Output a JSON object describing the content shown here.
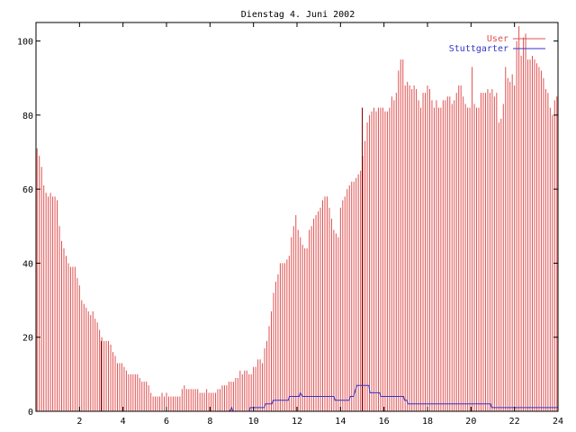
{
  "chart_data": {
    "type": "bar",
    "title": "Dienstag 4. Juni 2002",
    "xlabel": "",
    "ylabel": "",
    "xlim": [
      0,
      24
    ],
    "ylim": [
      0,
      105
    ],
    "x_ticks": [
      2,
      4,
      6,
      8,
      10,
      12,
      14,
      16,
      18,
      20,
      22,
      24
    ],
    "y_ticks": [
      0,
      20,
      40,
      60,
      80,
      100
    ],
    "grid": false,
    "legend_position": "top-right",
    "interval_hours": 0.0833,
    "series": [
      {
        "name": "User",
        "style": "impulses",
        "color": "#e05050",
        "values": [
          71,
          69,
          66,
          61,
          59,
          58,
          59,
          58,
          58,
          57,
          50,
          46,
          44,
          42,
          40,
          39,
          39,
          39,
          36,
          34,
          30,
          29,
          28,
          27,
          26,
          27,
          25,
          24,
          22,
          20,
          19,
          19,
          19,
          18,
          16,
          15,
          13,
          13,
          13,
          12,
          11,
          10,
          10,
          10,
          10,
          10,
          9,
          8,
          8,
          8,
          7,
          5,
          4,
          4,
          4,
          4,
          5,
          4,
          5,
          4,
          4,
          4,
          4,
          4,
          4,
          6,
          7,
          6,
          6,
          6,
          6,
          6,
          6,
          5,
          5,
          5,
          6,
          5,
          5,
          5,
          5,
          6,
          6,
          7,
          7,
          7,
          8,
          8,
          8,
          9,
          9,
          11,
          10,
          11,
          11,
          10,
          10,
          12,
          12,
          14,
          14,
          13,
          17,
          19,
          23,
          27,
          32,
          35,
          37,
          40,
          40,
          40,
          41,
          42,
          47,
          50,
          53,
          49,
          47,
          45,
          44,
          44,
          49,
          50,
          52,
          53,
          54,
          55,
          57,
          58,
          58,
          55,
          52,
          49,
          48,
          47,
          55,
          57,
          58,
          60,
          61,
          62,
          62,
          63,
          64,
          65,
          69,
          73,
          78,
          80,
          81,
          82,
          81,
          82,
          82,
          82,
          81,
          81,
          82,
          85,
          84,
          86,
          92,
          95,
          95,
          88,
          89,
          88,
          87,
          88,
          87,
          84,
          82,
          86,
          86,
          88,
          87,
          84,
          82,
          84,
          82,
          82,
          84,
          84,
          85,
          85,
          83,
          84,
          86,
          88,
          88,
          85,
          83,
          82,
          82,
          93,
          83,
          82,
          82,
          86,
          86,
          86,
          87,
          86,
          87,
          85,
          86,
          78,
          79,
          83,
          93,
          90,
          89,
          91,
          88,
          100,
          104,
          96,
          101,
          102,
          95,
          95,
          96,
          95,
          94,
          93,
          92,
          90,
          87,
          86,
          82,
          80,
          84,
          85
        ]
      },
      {
        "name": "Stuttgarter",
        "style": "steps",
        "color": "#3333cc",
        "points": [
          [
            0,
            0
          ],
          [
            8.9,
            0
          ],
          [
            9.0,
            1
          ],
          [
            9.05,
            0
          ],
          [
            9.8,
            0
          ],
          [
            9.85,
            1
          ],
          [
            10.5,
            1
          ],
          [
            10.55,
            2
          ],
          [
            10.85,
            2
          ],
          [
            10.9,
            3
          ],
          [
            11.6,
            3
          ],
          [
            11.65,
            4
          ],
          [
            12.1,
            4
          ],
          [
            12.15,
            5
          ],
          [
            12.25,
            4
          ],
          [
            13.7,
            4
          ],
          [
            13.75,
            3
          ],
          [
            14.4,
            3
          ],
          [
            14.45,
            4
          ],
          [
            14.6,
            4
          ],
          [
            14.65,
            5
          ],
          [
            14.75,
            7
          ],
          [
            15.3,
            7
          ],
          [
            15.35,
            5
          ],
          [
            15.8,
            5
          ],
          [
            15.85,
            4
          ],
          [
            16.9,
            4
          ],
          [
            16.95,
            3
          ],
          [
            17.05,
            3
          ],
          [
            17.1,
            2
          ],
          [
            20.9,
            2
          ],
          [
            20.95,
            1
          ],
          [
            24,
            1
          ]
        ]
      }
    ]
  }
}
